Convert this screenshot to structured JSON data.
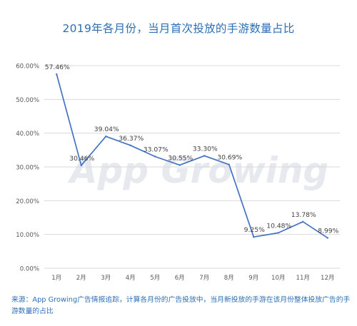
{
  "title": "2019年各月份，当月首次投放的手游数量占比",
  "watermark": "App Growing",
  "footnote": "来源：App Growing广告情报追踪，计算各月份的广告投放中，当月新投放的手游在该月份整体投放广告的手游数量的占比",
  "colors": {
    "line": "#4472c4",
    "title": "#2c6fb7",
    "grid": "#d9d9d9",
    "axis_text": "#595959",
    "label_text": "#404040"
  },
  "chart_data": {
    "type": "line",
    "categories": [
      "1月",
      "2月",
      "3月",
      "4月",
      "5月",
      "6月",
      "7月",
      "8月",
      "9月",
      "10月",
      "11月",
      "12月"
    ],
    "series": [
      {
        "values": [
          57.46,
          30.46,
          39.04,
          36.37,
          33.07,
          30.55,
          33.3,
          30.69,
          9.25,
          10.48,
          13.78,
          8.99
        ]
      }
    ],
    "data_labels": [
      "57.46%",
      "30.46%",
      "39.04%",
      "36.37%",
      "33.07%",
      "30.55%",
      "33.30%",
      "30.69%",
      "9.25%",
      "10.48%",
      "13.78%",
      "8.99%"
    ],
    "yticks": [
      "0.00%",
      "10.00%",
      "20.00%",
      "30.00%",
      "40.00%",
      "50.00%",
      "60.00%"
    ],
    "ylim": [
      0,
      60
    ],
    "grid": true,
    "legend": "none"
  }
}
